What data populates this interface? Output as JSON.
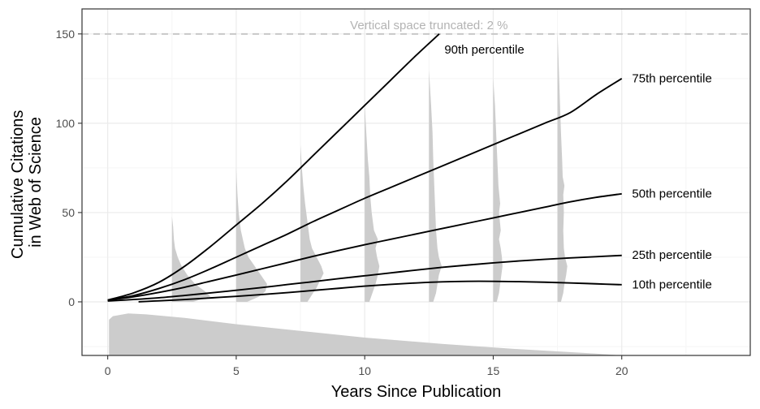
{
  "chart_data": {
    "type": "line",
    "title": "",
    "xlabel": "Years Since Publication",
    "ylabel_lines": [
      "Cumulative Citations",
      "in Web of Science"
    ],
    "xlim": [
      -1,
      25
    ],
    "ylim": [
      -30,
      164
    ],
    "x_ticks": [
      0,
      5,
      10,
      15,
      20
    ],
    "y_ticks": [
      0,
      50,
      100,
      150
    ],
    "grid": true,
    "legend": "none",
    "annotation": {
      "text": "Vertical space truncated: 2 %",
      "y": 150
    },
    "colors": {
      "line": "#000000",
      "density": "#cccccc",
      "grid_major": "#ebebeb",
      "grid_minor": "#f5f5f5",
      "truncation_line": "#c8c8c8",
      "annotation_text": "#b3b3b3",
      "tick_text": "#4d4d4d"
    },
    "series": [
      {
        "name": "90th percentile",
        "x": [
          0,
          1,
          2,
          3,
          4,
          5,
          6,
          7,
          8,
          9,
          10,
          11,
          12,
          12.9
        ],
        "values": [
          1,
          5,
          11,
          20,
          31,
          43,
          55,
          68,
          82,
          96,
          110,
          124,
          138,
          150
        ]
      },
      {
        "name": "75th percentile",
        "x": [
          0,
          1,
          2,
          3,
          4,
          5,
          6,
          7,
          8,
          9,
          10,
          11,
          12,
          13,
          14,
          15,
          16,
          17,
          18,
          19,
          20
        ],
        "values": [
          1,
          3.5,
          7.5,
          12.5,
          18.5,
          25,
          31.5,
          38,
          45,
          51.5,
          58,
          64,
          70,
          76,
          82,
          88,
          94,
          100,
          106,
          116,
          125
        ]
      },
      {
        "name": "50th percentile",
        "x": [
          0,
          1,
          2,
          3,
          4,
          5,
          6,
          7,
          8,
          9,
          10,
          11,
          12,
          13,
          14,
          15,
          16,
          17,
          18,
          19,
          20
        ],
        "values": [
          1,
          2.8,
          5.3,
          8.2,
          11.6,
          15,
          18.5,
          22,
          25.5,
          28.8,
          32,
          35,
          38,
          41,
          44,
          47,
          50,
          53,
          56,
          58.5,
          60.5
        ]
      },
      {
        "name": "25th percentile",
        "x": [
          0,
          1,
          2,
          3,
          4,
          5,
          6,
          7,
          8,
          9,
          10,
          11,
          12,
          13,
          14,
          15,
          16,
          17,
          18,
          19,
          20
        ],
        "values": [
          0.5,
          1.3,
          2.3,
          3.6,
          5,
          6.5,
          8,
          9.7,
          11.3,
          13,
          14.6,
          16.2,
          17.8,
          19.3,
          20.6,
          21.8,
          22.9,
          23.8,
          24.6,
          25.3,
          26
        ]
      },
      {
        "name": "10th percentile",
        "x": [
          1.2,
          2,
          3,
          4,
          5,
          6,
          7,
          8,
          9,
          10,
          11,
          12,
          13,
          14,
          15,
          16,
          17,
          18,
          19,
          20
        ],
        "values": [
          0,
          0.6,
          1.3,
          2.2,
          3.1,
          4.1,
          5.2,
          6.4,
          7.6,
          8.8,
          9.8,
          10.6,
          11.2,
          11.5,
          11.5,
          11.3,
          11,
          10.6,
          10.1,
          9.6
        ]
      }
    ],
    "series_label_positions": [
      {
        "x": 13.1,
        "y": 141
      },
      {
        "x": 20.4,
        "y": 125
      },
      {
        "x": 20.4,
        "y": 60.5
      },
      {
        "x": 20.4,
        "y": 26
      },
      {
        "x": 20.4,
        "y": 9.6
      }
    ],
    "density_distributions": [
      {
        "year": 2.5,
        "max_width_years": 1.5,
        "ymax": 48,
        "profile": [
          [
            0,
            0.55
          ],
          [
            3,
            1.0
          ],
          [
            6,
            0.85
          ],
          [
            10,
            0.6
          ],
          [
            15,
            0.4
          ],
          [
            20,
            0.25
          ],
          [
            25,
            0.15
          ],
          [
            30,
            0.08
          ],
          [
            35,
            0.05
          ],
          [
            42,
            0.03
          ],
          [
            48,
            0.0
          ]
        ]
      },
      {
        "year": 5,
        "max_width_years": 1.2,
        "ymax": 75,
        "profile": [
          [
            0,
            0.35
          ],
          [
            3,
            0.75
          ],
          [
            6,
            0.95
          ],
          [
            10,
            1.0
          ],
          [
            15,
            0.8
          ],
          [
            20,
            0.6
          ],
          [
            25,
            0.4
          ],
          [
            30,
            0.28
          ],
          [
            40,
            0.15
          ],
          [
            50,
            0.08
          ],
          [
            60,
            0.04
          ],
          [
            75,
            0.0
          ]
        ]
      },
      {
        "year": 7.5,
        "max_width_years": 0.9,
        "ymax": 88,
        "profile": [
          [
            0,
            0.3
          ],
          [
            4,
            0.5
          ],
          [
            8,
            0.7
          ],
          [
            12,
            0.85
          ],
          [
            16,
            1.0
          ],
          [
            20,
            0.9
          ],
          [
            25,
            0.7
          ],
          [
            30,
            0.5
          ],
          [
            35,
            0.4
          ],
          [
            45,
            0.3
          ],
          [
            55,
            0.2
          ],
          [
            65,
            0.12
          ],
          [
            75,
            0.06
          ],
          [
            88,
            0.0
          ]
        ]
      },
      {
        "year": 10,
        "max_width_years": 0.6,
        "ymax": 110,
        "profile": [
          [
            0,
            0.3
          ],
          [
            5,
            0.5
          ],
          [
            10,
            0.7
          ],
          [
            15,
            0.85
          ],
          [
            20,
            0.95
          ],
          [
            25,
            0.8
          ],
          [
            30,
            0.7
          ],
          [
            35,
            0.85
          ],
          [
            40,
            0.6
          ],
          [
            50,
            0.45
          ],
          [
            60,
            0.35
          ],
          [
            70,
            0.3
          ],
          [
            80,
            0.2
          ],
          [
            95,
            0.1
          ],
          [
            110,
            0.0
          ]
        ]
      },
      {
        "year": 12.5,
        "max_width_years": 0.55,
        "ymax": 130,
        "profile": [
          [
            0,
            0.3
          ],
          [
            5,
            0.5
          ],
          [
            10,
            0.6
          ],
          [
            15,
            0.7
          ],
          [
            20,
            0.9
          ],
          [
            25,
            0.7
          ],
          [
            30,
            0.6
          ],
          [
            40,
            0.5
          ],
          [
            50,
            0.45
          ],
          [
            60,
            0.4
          ],
          [
            70,
            0.35
          ],
          [
            80,
            0.3
          ],
          [
            95,
            0.25
          ],
          [
            110,
            0.15
          ],
          [
            130,
            0.0
          ]
        ]
      },
      {
        "year": 15,
        "max_width_years": 0.45,
        "ymax": 125,
        "profile": [
          [
            0,
            0.3
          ],
          [
            5,
            0.5
          ],
          [
            10,
            0.6
          ],
          [
            15,
            0.7
          ],
          [
            20,
            0.8
          ],
          [
            25,
            0.75
          ],
          [
            30,
            0.65
          ],
          [
            35,
            0.5
          ],
          [
            40,
            0.65
          ],
          [
            50,
            0.5
          ],
          [
            55,
            0.6
          ],
          [
            65,
            0.45
          ],
          [
            80,
            0.35
          ],
          [
            95,
            0.25
          ],
          [
            110,
            0.15
          ],
          [
            125,
            0.0
          ]
        ]
      },
      {
        "year": 17.5,
        "max_width_years": 0.45,
        "ymax": 152,
        "profile": [
          [
            0,
            0.3
          ],
          [
            5,
            0.5
          ],
          [
            10,
            0.6
          ],
          [
            15,
            0.75
          ],
          [
            20,
            0.85
          ],
          [
            25,
            0.65
          ],
          [
            30,
            0.55
          ],
          [
            40,
            0.5
          ],
          [
            50,
            0.55
          ],
          [
            60,
            0.5
          ],
          [
            65,
            0.6
          ],
          [
            70,
            0.45
          ],
          [
            80,
            0.4
          ],
          [
            95,
            0.3
          ],
          [
            110,
            0.22
          ],
          [
            130,
            0.12
          ],
          [
            152,
            0.0
          ]
        ]
      }
    ],
    "bottom_distribution": {
      "base_y": -30,
      "points": [
        [
          0.05,
          -30
        ],
        [
          0.05,
          -10
        ],
        [
          0.2,
          -8
        ],
        [
          0.8,
          -6.5
        ],
        [
          1.5,
          -7
        ],
        [
          3,
          -9
        ],
        [
          5,
          -12.5
        ],
        [
          7,
          -15.5
        ],
        [
          10,
          -20
        ],
        [
          13,
          -23.5
        ],
        [
          16,
          -26.5
        ],
        [
          19,
          -29
        ],
        [
          20,
          -30
        ]
      ]
    }
  }
}
